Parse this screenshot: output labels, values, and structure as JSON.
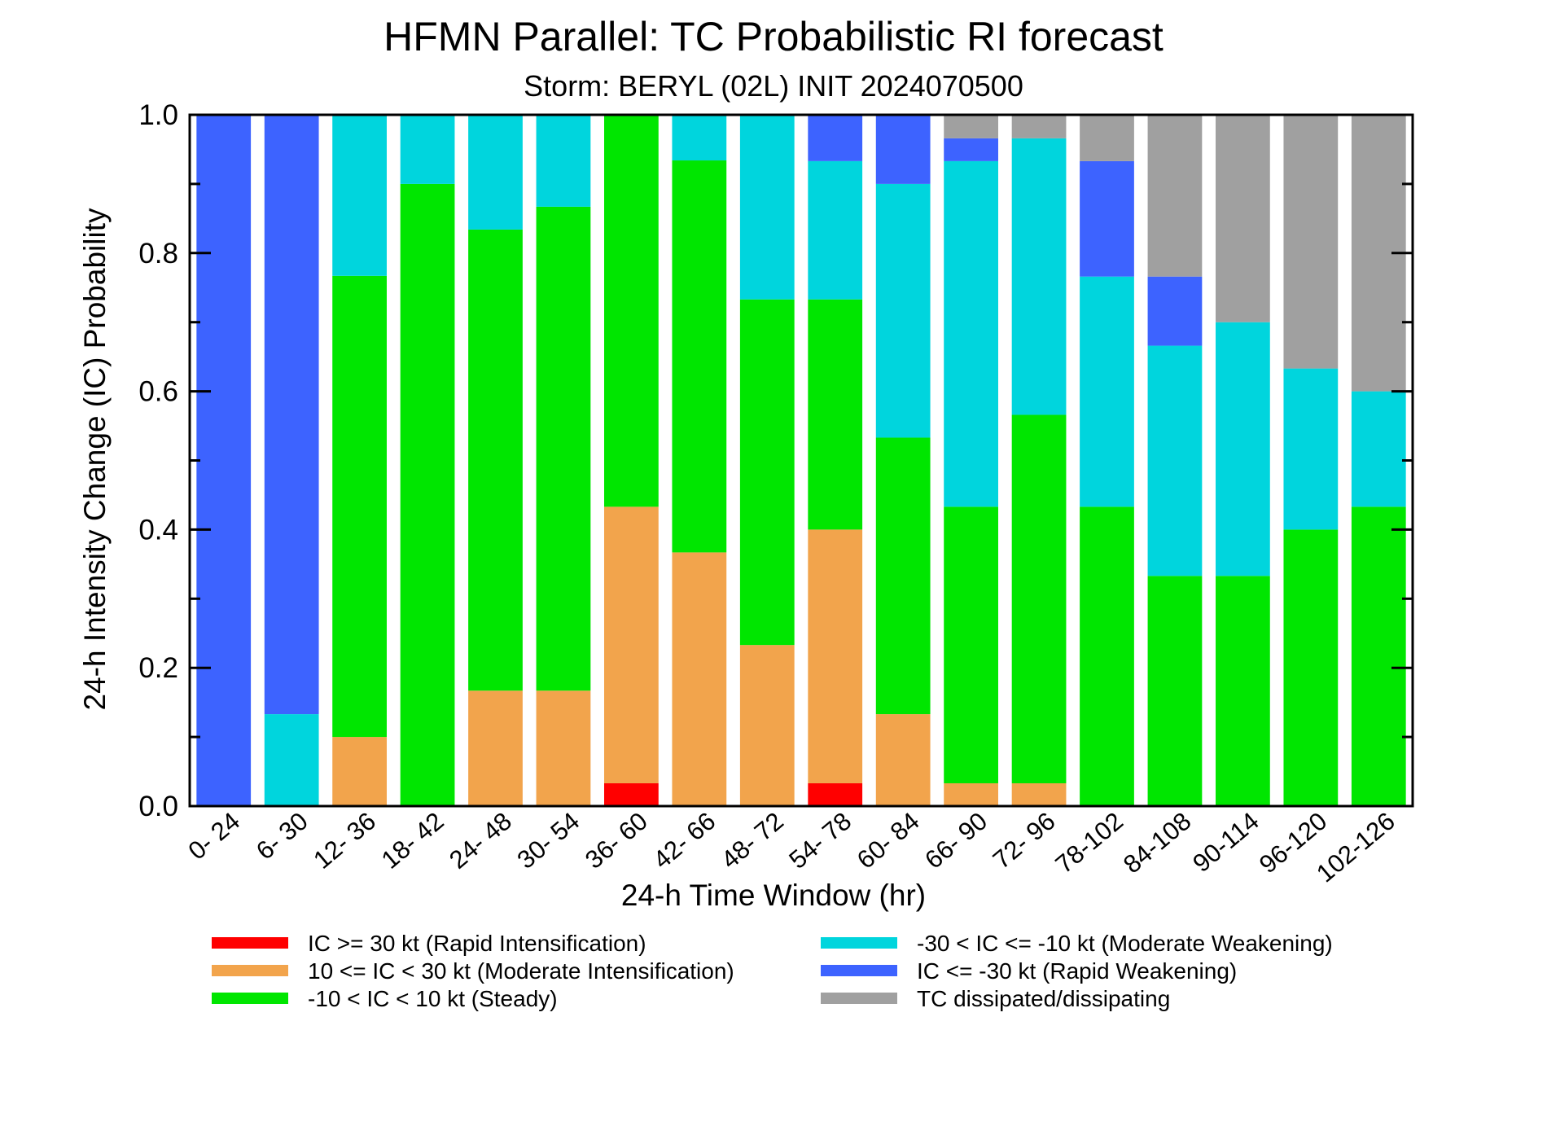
{
  "chart_data": {
    "type": "bar",
    "stacked": true,
    "title": "HFMN Parallel: TC Probabilistic RI forecast",
    "subtitle": "Storm: BERYL (02L) INIT 2024070500",
    "xlabel": "24-h Time Window (hr)",
    "ylabel": "24-h Intensity Change (IC) Probability",
    "ylim": [
      0,
      1
    ],
    "yticks": [
      "0.0",
      "0.2",
      "0.4",
      "0.6",
      "0.8",
      "1.0"
    ],
    "ytick_values": [
      0,
      0.2,
      0.4,
      0.6,
      0.8,
      1.0
    ],
    "grid": false,
    "legend_position": "bottom",
    "categories": [
      "0- 24",
      "6- 30",
      "12- 36",
      "18- 42",
      "24- 48",
      "30- 54",
      "36- 60",
      "42- 66",
      "48- 72",
      "54- 78",
      "60- 84",
      "66- 90",
      "72- 96",
      "78-102",
      "84-108",
      "90-114",
      "96-120",
      "102-126"
    ],
    "series": [
      {
        "name": "IC >= 30 kt (Rapid Intensification)",
        "color": "#ff0000",
        "values": [
          0,
          0,
          0,
          0,
          0,
          0,
          0.033,
          0,
          0,
          0.033,
          0,
          0,
          0,
          0,
          0,
          0,
          0,
          0
        ]
      },
      {
        "name": "10 <= IC < 30 kt (Moderate Intensification)",
        "color": "#f2a44c",
        "values": [
          0,
          0,
          0.1,
          0,
          0.167,
          0.167,
          0.4,
          0.367,
          0.233,
          0.367,
          0.133,
          0.033,
          0.033,
          0,
          0,
          0,
          0,
          0
        ]
      },
      {
        "name": "-10 < IC < 10 kt (Steady)",
        "color": "#00e600",
        "values": [
          0,
          0,
          0.667,
          0.9,
          0.667,
          0.7,
          0.567,
          0.567,
          0.5,
          0.333,
          0.4,
          0.4,
          0.533,
          0.433,
          0.333,
          0.333,
          0.4,
          0.433
        ]
      },
      {
        "name": "-30 < IC <= -10 kt (Moderate Weakening)",
        "color": "#00d5dd",
        "values": [
          0,
          0.133,
          0.233,
          0.1,
          0.167,
          0.133,
          0,
          0.067,
          0.267,
          0.2,
          0.367,
          0.5,
          0.4,
          0.333,
          0.333,
          0.367,
          0.233,
          0.167
        ]
      },
      {
        "name": "IC <= -30 kt (Rapid Weakening)",
        "color": "#3d63ff",
        "values": [
          1.0,
          0.867,
          0,
          0,
          0,
          0,
          0,
          0,
          0,
          0.067,
          0.1,
          0.033,
          0,
          0.167,
          0.1,
          0,
          0,
          0
        ]
      },
      {
        "name": "TC dissipated/dissipating",
        "color": "#a0a0a0",
        "values": [
          0,
          0,
          0,
          0,
          0,
          0,
          0,
          0,
          0,
          0,
          0,
          0.033,
          0.033,
          0.067,
          0.233,
          0.3,
          0.367,
          0.4
        ]
      }
    ],
    "legend_order": [
      0,
      1,
      2,
      3,
      4,
      5
    ]
  }
}
